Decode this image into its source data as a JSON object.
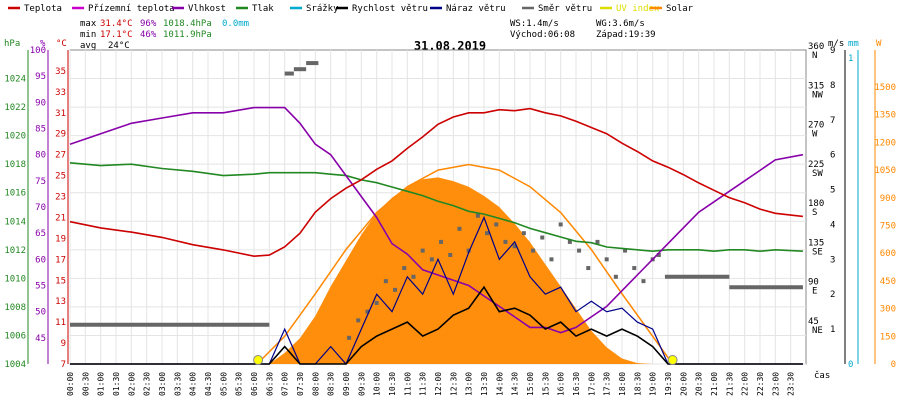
{
  "colors": {
    "teplota": "#cc0000",
    "prizemni": "#cc00cc",
    "vlhkost": "#8800aa",
    "tlak": "#228822",
    "srazky": "#00aacc",
    "rychlost": "#000000",
    "naraz": "#000088",
    "smer": "#666666",
    "uv": "#dddd00",
    "solar": "#ff8800"
  },
  "legend": [
    {
      "label": "Teplota",
      "color": "#cc0000"
    },
    {
      "label": "Přízemní teplota",
      "color": "#cc00cc"
    },
    {
      "label": "Vlhkost",
      "color": "#8800aa"
    },
    {
      "label": "Tlak",
      "color": "#228822"
    },
    {
      "label": "Srážky",
      "color": "#00aacc"
    },
    {
      "label": "Rychlost větru",
      "color": "#000000"
    },
    {
      "label": "Náraz větru",
      "color": "#000088"
    },
    {
      "label": "Směr větru",
      "color": "#666666"
    },
    {
      "label": "UV index",
      "color": "#dddd00"
    },
    {
      "label": "Solar",
      "color": "#ff8800"
    }
  ],
  "stats": {
    "max_label": "max",
    "max_temp": "31.4°C",
    "max_hum": "96%",
    "max_press": "1018.4hPa",
    "rain": "0.0mm",
    "min_label": "min",
    "min_temp": "17.1°C",
    "min_hum": "46%",
    "min_press": "1011.9hPa",
    "avg_label": "avg",
    "avg_temp": "24°C",
    "ws": "WS:1.4m/s",
    "wg": "WG:3.6m/s",
    "sunrise": "Východ:06:08",
    "sunset": "Západ:19:39"
  },
  "date": "31.08.2019",
  "axis_units": {
    "hpa": "hPa",
    "pct": "%",
    "degc": "°C",
    "ms": "m/s",
    "mm": "mm",
    "w": "W",
    "cas": "čas"
  },
  "chart_data": {
    "type": "line",
    "x_unit": "time (hh:mm)",
    "x_ticks": [
      "00:00",
      "00:30",
      "01:00",
      "01:30",
      "02:00",
      "02:30",
      "03:00",
      "03:30",
      "04:00",
      "04:30",
      "05:00",
      "05:30",
      "06:00",
      "06:30",
      "07:00",
      "07:30",
      "08:00",
      "08:30",
      "09:00",
      "09:30",
      "10:00",
      "10:30",
      "11:00",
      "11:30",
      "12:00",
      "12:30",
      "13:00",
      "13:30",
      "14:00",
      "14:30",
      "15:00",
      "15:30",
      "16:00",
      "16:30",
      "17:00",
      "17:30",
      "18:00",
      "18:30",
      "19:00",
      "19:30",
      "20:00",
      "20:30",
      "21:00",
      "21:30",
      "22:00",
      "22:30",
      "23:00",
      "23:30"
    ],
    "axes": {
      "pressure_hpa": {
        "ticks": [
          "1004",
          "1006",
          "1008",
          "1010",
          "1012",
          "1014",
          "1016",
          "1018",
          "1020",
          "1022",
          "1024"
        ],
        "range": [
          1004,
          1026
        ]
      },
      "humidity_pct": {
        "ticks": [
          "45",
          "50",
          "55",
          "60",
          "65",
          "70",
          "75",
          "80",
          "85",
          "90",
          "95",
          "100"
        ],
        "range": [
          40,
          100
        ]
      },
      "temperature_c": {
        "ticks": [
          "7",
          "9",
          "11",
          "13",
          "15",
          "17",
          "19",
          "21",
          "23",
          "25",
          "27",
          "29",
          "31",
          "33",
          "35"
        ],
        "range": [
          7,
          37
        ]
      },
      "wind_dir": {
        "ticks": [
          "45 NE",
          "90 E",
          "135 SE",
          "180 S",
          "225 SW",
          "270 W",
          "315 NW",
          "360 N"
        ],
        "range": [
          0,
          360
        ]
      },
      "wind_ms": {
        "ticks": [
          "1",
          "2",
          "3",
          "4",
          "5",
          "6",
          "7",
          "8",
          "9"
        ],
        "range": [
          0,
          9
        ]
      },
      "rain_mm": {
        "ticks": [
          "0",
          "1"
        ],
        "range": [
          0,
          1
        ]
      },
      "solar_w": {
        "ticks": [
          "0",
          "150",
          "300",
          "450",
          "600",
          "750",
          "900",
          "1050",
          "1200",
          "1350",
          "1500"
        ],
        "range": [
          0,
          1700
        ]
      }
    },
    "x_hours": [
      0,
      1,
      2,
      3,
      4,
      5,
      6,
      6.5,
      7,
      7.5,
      8,
      8.5,
      9,
      9.5,
      10,
      10.5,
      11,
      11.5,
      12,
      12.5,
      13,
      13.5,
      14,
      14.5,
      15,
      15.5,
      16,
      16.5,
      17,
      17.5,
      18,
      18.5,
      19,
      19.5,
      20,
      20.5,
      21,
      21.5,
      22,
      22.5,
      23,
      23.9
    ],
    "series": [
      {
        "name": "Teplota",
        "key": "teplota",
        "axis": "temperature_c",
        "values": [
          20.6,
          20.0,
          19.6,
          19.1,
          18.4,
          17.9,
          17.3,
          17.4,
          18.2,
          19.5,
          21.5,
          22.8,
          23.8,
          24.6,
          25.6,
          26.4,
          27.6,
          28.7,
          29.9,
          30.6,
          31.0,
          31.0,
          31.3,
          31.2,
          31.4,
          31.0,
          30.7,
          30.2,
          29.6,
          29.0,
          28.1,
          27.3,
          26.4,
          25.8,
          25.1,
          24.3,
          23.6,
          22.9,
          22.4,
          21.8,
          21.4,
          21.1
        ]
      },
      {
        "name": "Vlhkost",
        "key": "vlhkost",
        "axis": "humidity_pct",
        "values": [
          82,
          84,
          86,
          87,
          88,
          88,
          89,
          89,
          89,
          86,
          82,
          80,
          76,
          72,
          68,
          63,
          61,
          58,
          57,
          56,
          55,
          53,
          51,
          49,
          47,
          47,
          46,
          47,
          49,
          51,
          54,
          57,
          60,
          63,
          66,
          69,
          71,
          73,
          75,
          77,
          79,
          80
        ]
      },
      {
        "name": "Tlak",
        "key": "tlak",
        "axis": "pressure_hpa",
        "values": [
          1018.1,
          1017.9,
          1018.0,
          1017.7,
          1017.5,
          1017.2,
          1017.3,
          1017.4,
          1017.4,
          1017.4,
          1017.4,
          1017.3,
          1017.2,
          1016.9,
          1016.7,
          1016.4,
          1016.1,
          1015.8,
          1015.4,
          1015.1,
          1014.7,
          1014.5,
          1014.2,
          1013.9,
          1013.5,
          1013.2,
          1012.9,
          1012.6,
          1012.5,
          1012.2,
          1012.1,
          1012.0,
          1011.9,
          1012.0,
          1012.0,
          1012.0,
          1011.9,
          1012.0,
          1012.0,
          1011.9,
          1012.0,
          1011.9
        ]
      },
      {
        "name": "Rychlost větru",
        "key": "rychlost",
        "axis": "wind_ms",
        "values": [
          0,
          0,
          0,
          0,
          0,
          0,
          0,
          0,
          0.5,
          0,
          0,
          0,
          0,
          0.5,
          0.8,
          1.0,
          1.2,
          0.8,
          1.0,
          1.4,
          1.6,
          2.2,
          1.5,
          1.6,
          1.4,
          1.0,
          1.2,
          0.8,
          1.0,
          0.8,
          1.0,
          0.8,
          0.5,
          0,
          0,
          0,
          0,
          0,
          0,
          0,
          0,
          0
        ]
      },
      {
        "name": "Náraz větru",
        "key": "naraz",
        "axis": "wind_ms",
        "values": [
          0,
          0,
          0,
          0,
          0,
          0,
          0,
          0,
          1.0,
          0,
          0,
          0.5,
          0,
          1.0,
          2.0,
          1.5,
          2.5,
          2.0,
          3.0,
          2.0,
          3.2,
          4.2,
          3.0,
          3.5,
          2.5,
          2.0,
          2.2,
          1.5,
          1.8,
          1.5,
          1.6,
          1.2,
          1.0,
          0,
          0,
          0,
          0,
          0,
          0,
          0,
          0,
          0
        ]
      },
      {
        "name": "Solar",
        "key": "solar",
        "axis": "solar_w",
        "values": [
          0,
          0,
          0,
          0,
          0,
          0,
          0,
          0,
          60,
          140,
          260,
          420,
          560,
          700,
          820,
          900,
          960,
          1000,
          1010,
          990,
          960,
          910,
          850,
          760,
          660,
          540,
          420,
          300,
          180,
          90,
          30,
          5,
          0,
          0,
          0,
          0,
          0,
          0,
          0,
          0,
          0,
          0
        ]
      }
    ],
    "solar_clear_sky": {
      "name": "Solar (max)",
      "axis": "solar_w",
      "x": [
        6.1,
        7,
        8,
        9,
        10,
        11,
        12,
        13,
        14,
        15,
        16,
        17,
        18,
        19,
        19.65
      ],
      "values": [
        0,
        150,
        380,
        620,
        820,
        960,
        1050,
        1080,
        1050,
        960,
        820,
        620,
        380,
        150,
        0
      ]
    },
    "wind_dir_steps": {
      "name": "Směr větru",
      "axis": "wind_dir",
      "segments": [
        {
          "x0": 0,
          "x1": 6.5,
          "value": 45
        },
        {
          "x0": 7.0,
          "x1": 7.3,
          "value": 333
        },
        {
          "x0": 7.3,
          "x1": 7.7,
          "value": 338
        },
        {
          "x0": 7.7,
          "x1": 8.1,
          "value": 345
        },
        {
          "x0": 19.4,
          "x1": 21.5,
          "value": 100
        },
        {
          "x0": 21.5,
          "x1": 23.9,
          "value": 88
        }
      ],
      "scatter_x": [
        9.1,
        9.4,
        9.7,
        10,
        10.3,
        10.6,
        10.9,
        11.2,
        11.5,
        11.8,
        12.1,
        12.4,
        12.7,
        13,
        13.3,
        13.6,
        13.9,
        14.2,
        14.5,
        14.8,
        15.1,
        15.4,
        15.7,
        16,
        16.3,
        16.6,
        16.9,
        17.2,
        17.5,
        17.8,
        18.1,
        18.4,
        18.7,
        19,
        19.2
      ],
      "scatter_values": [
        30,
        50,
        60,
        70,
        95,
        85,
        110,
        100,
        130,
        120,
        140,
        125,
        155,
        130,
        170,
        150,
        160,
        140,
        135,
        150,
        130,
        145,
        120,
        160,
        140,
        130,
        110,
        140,
        120,
        100,
        130,
        110,
        95,
        120,
        125
      ]
    },
    "sun_markers": [
      "06:08",
      "19:39"
    ]
  }
}
